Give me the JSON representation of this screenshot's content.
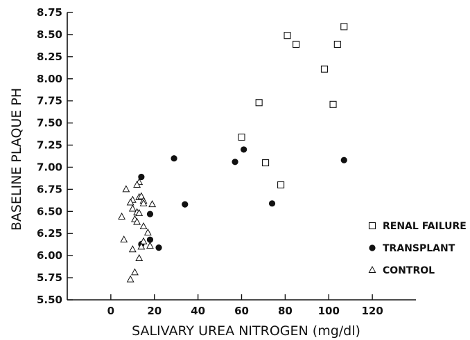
{
  "chart_data": {
    "type": "scatter",
    "xlabel": "SALIVARY UREA NITROGEN (mg/dl)",
    "ylabel": "BASELINE PLAQUE PH",
    "xlim": [
      -20,
      140
    ],
    "ylim": [
      5.5,
      8.75
    ],
    "xticks": [
      "0",
      "20",
      "40",
      "60",
      "80",
      "100",
      "120"
    ],
    "yticks": [
      "5.50",
      "5.75",
      "6.00",
      "6.25",
      "6.50",
      "6.75",
      "7.00",
      "7.25",
      "7.50",
      "7.75",
      "8.00",
      "8.25",
      "8.50",
      "8.75"
    ],
    "legend_position": "right",
    "series": [
      {
        "name": "RENAL FAILURE",
        "marker": "open-square",
        "points": [
          [
            60,
            7.34
          ],
          [
            68,
            7.73
          ],
          [
            71,
            7.05
          ],
          [
            78,
            6.8
          ],
          [
            81,
            8.49
          ],
          [
            85,
            8.39
          ],
          [
            98,
            8.11
          ],
          [
            102,
            7.71
          ],
          [
            104,
            8.39
          ],
          [
            107,
            8.59
          ]
        ]
      },
      {
        "name": "TRANSPLANT",
        "marker": "filled-circle",
        "points": [
          [
            14,
            6.89
          ],
          [
            29,
            7.1
          ],
          [
            57,
            7.06
          ],
          [
            61,
            7.2
          ],
          [
            107,
            7.08
          ],
          [
            34,
            6.58
          ],
          [
            74,
            6.59
          ],
          [
            18,
            6.47
          ],
          [
            18,
            6.18
          ],
          [
            14,
            6.13
          ],
          [
            22,
            6.09
          ]
        ]
      },
      {
        "name": "CONTROL",
        "marker": "open-triangle",
        "points": [
          [
            7,
            6.75
          ],
          [
            13,
            6.83
          ],
          [
            12,
            6.8
          ],
          [
            10,
            6.63
          ],
          [
            13,
            6.66
          ],
          [
            14,
            6.67
          ],
          [
            9,
            6.6
          ],
          [
            15,
            6.62
          ],
          [
            15,
            6.59
          ],
          [
            19,
            6.58
          ],
          [
            10,
            6.53
          ],
          [
            12,
            6.49
          ],
          [
            13,
            6.48
          ],
          [
            5,
            6.44
          ],
          [
            11,
            6.41
          ],
          [
            12,
            6.38
          ],
          [
            15,
            6.33
          ],
          [
            17,
            6.26
          ],
          [
            6,
            6.18
          ],
          [
            15,
            6.16
          ],
          [
            18,
            6.11
          ],
          [
            10,
            6.07
          ],
          [
            14,
            6.1
          ],
          [
            13,
            5.97
          ],
          [
            11,
            5.81
          ],
          [
            9,
            5.73
          ]
        ]
      }
    ]
  }
}
